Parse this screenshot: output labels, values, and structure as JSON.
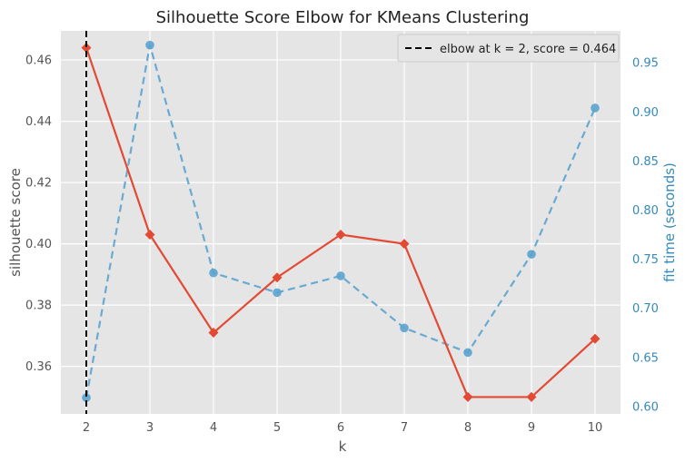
{
  "chart_data": {
    "type": "line",
    "title": "Silhouette Score Elbow for KMeans Clustering",
    "xlabel": "k",
    "ylabel": "silhouette score",
    "y2label": "fit time (seconds)",
    "x": [
      2,
      3,
      4,
      5,
      6,
      7,
      8,
      9,
      10
    ],
    "xlim": [
      1.6,
      10.4
    ],
    "ylim": [
      0.3445,
      0.4695
    ],
    "y2lim": [
      0.5925,
      0.9825
    ],
    "yticks": [
      "0.36",
      "0.38",
      "0.40",
      "0.42",
      "0.44",
      "0.46"
    ],
    "ytick_values": [
      0.36,
      0.38,
      0.4,
      0.42,
      0.44,
      0.46
    ],
    "y2ticks": [
      "0.60",
      "0.65",
      "0.70",
      "0.75",
      "0.80",
      "0.85",
      "0.90",
      "0.95"
    ],
    "y2tick_values": [
      0.6,
      0.65,
      0.7,
      0.75,
      0.8,
      0.85,
      0.9,
      0.95
    ],
    "grid": true,
    "series": [
      {
        "axis": "left",
        "style": "solid",
        "marker": "diamond",
        "values": [
          0.464,
          0.403,
          0.371,
          0.389,
          0.403,
          0.4,
          0.35,
          0.35,
          0.369
        ]
      },
      {
        "axis": "right",
        "style": "dashed",
        "marker": "circle",
        "values": [
          0.609,
          0.968,
          0.736,
          0.716,
          0.733,
          0.68,
          0.655,
          0.755,
          0.904
        ]
      }
    ],
    "elbow": {
      "x": 2,
      "legend_label": "elbow at k = 2, score = 0.464"
    },
    "legend_position": "top-right"
  },
  "colors": {
    "score": "#E24A33",
    "fit_time": "#348ABD",
    "fit_time_line": "#5BA3CF",
    "background": "#E5E5E5",
    "grid": "#FFFFFF",
    "text": "#555555",
    "title": "#222222",
    "elbow": "#000000"
  }
}
